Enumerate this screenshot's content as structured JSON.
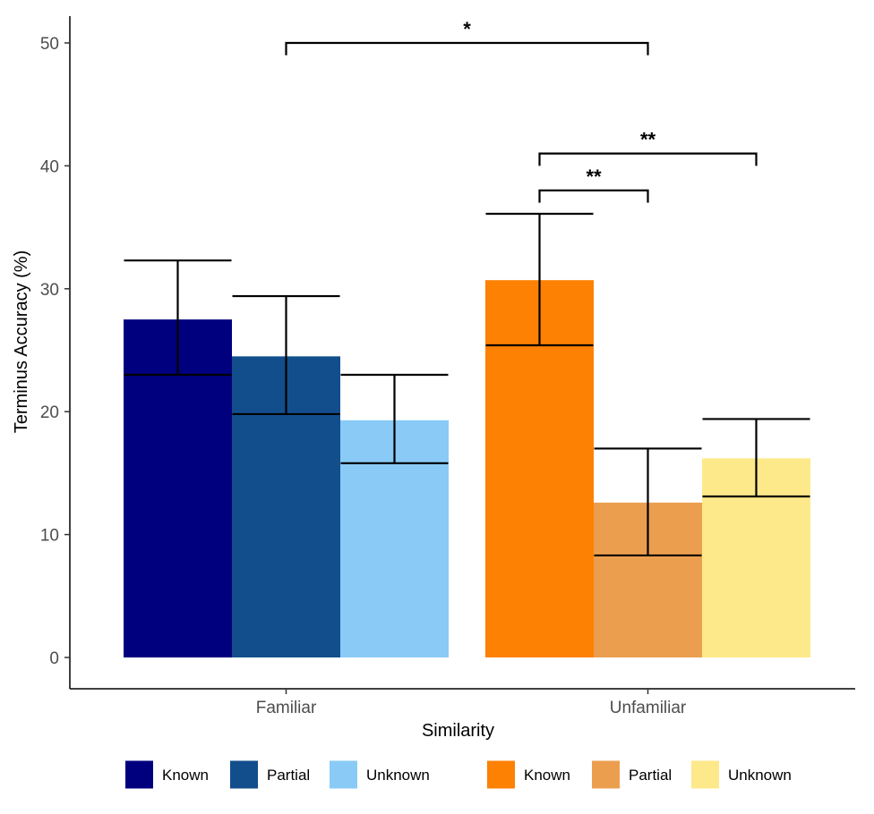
{
  "chart_data": {
    "type": "bar",
    "xlabel": "Similarity",
    "ylabel": "Terminus Accuracy (%)",
    "ylim": [
      0,
      50
    ],
    "yticks": [
      0,
      10,
      20,
      30,
      40,
      50
    ],
    "grid": false,
    "legend_position": "bottom",
    "groups": [
      {
        "name": "Familiar",
        "bars": [
          {
            "label": "Known",
            "value": 27.5,
            "error_low": 23.0,
            "error_high": 32.3,
            "color": "#00007f"
          },
          {
            "label": "Partial",
            "value": 24.5,
            "error_low": 19.8,
            "error_high": 29.4,
            "color": "#124e8c"
          },
          {
            "label": "Unknown",
            "value": 19.3,
            "error_low": 15.8,
            "error_high": 23.0,
            "color": "#89cbf6"
          }
        ]
      },
      {
        "name": "Unfamiliar",
        "bars": [
          {
            "label": "Known",
            "value": 30.7,
            "error_low": 25.4,
            "error_high": 36.1,
            "color": "#fd8103"
          },
          {
            "label": "Partial",
            "value": 12.6,
            "error_low": 8.3,
            "error_high": 17.0,
            "color": "#ec9e4f"
          },
          {
            "label": "Unknown",
            "value": 16.2,
            "error_low": 13.1,
            "error_high": 19.4,
            "color": "#fde98a"
          }
        ]
      }
    ],
    "annotations": [
      {
        "label": "*",
        "from": [
          0,
          1
        ],
        "to": [
          1,
          1
        ],
        "y": 50,
        "drop_left": 1.0,
        "drop_right": 1.0
      },
      {
        "label": "**",
        "from": [
          1,
          0
        ],
        "to": [
          1,
          1
        ],
        "y": 38,
        "drop_left": 1.0,
        "drop_right": 1.0
      },
      {
        "label": "**",
        "from": [
          1,
          0
        ],
        "to": [
          1,
          2
        ],
        "y": 41,
        "drop_left": 1.0,
        "drop_right": 1.0
      }
    ]
  }
}
